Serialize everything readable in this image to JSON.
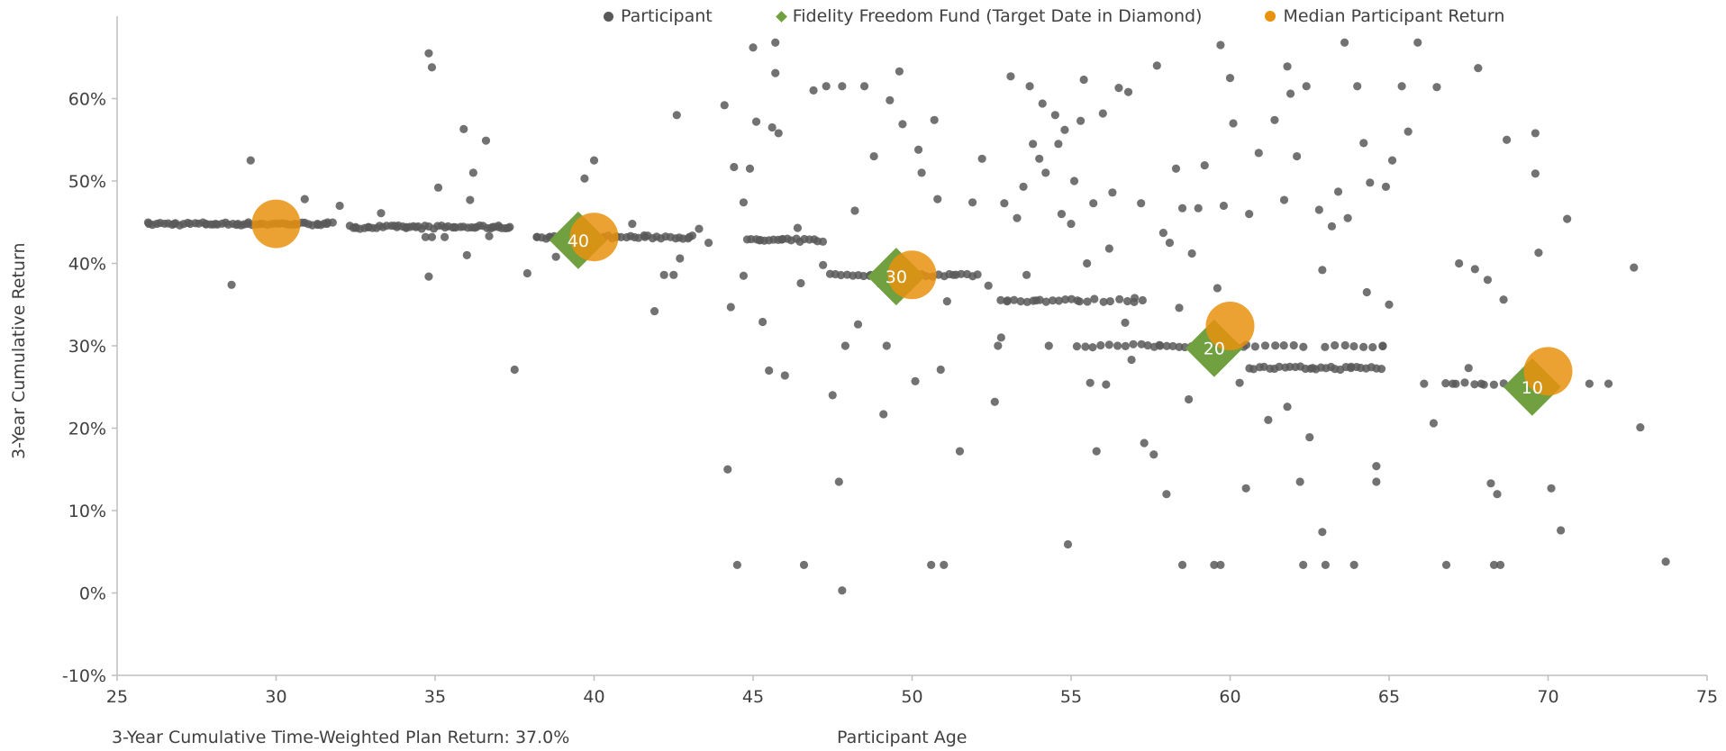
{
  "chart_data": {
    "type": "scatter",
    "xlabel": "Participant Age",
    "ylabel": "3-Year Cumulative Return",
    "xlim": [
      25,
      75
    ],
    "ylim": [
      -0.1,
      0.7
    ],
    "x_ticks": [
      "25",
      "30",
      "35",
      "40",
      "45",
      "50",
      "55",
      "60",
      "65",
      "70",
      "75"
    ],
    "y_ticks": [
      "-10%",
      "0%",
      "10%",
      "20%",
      "30%",
      "40%",
      "50%",
      "60%"
    ],
    "y_tick_values": [
      -0.1,
      0.0,
      0.1,
      0.2,
      0.3,
      0.4,
      0.5,
      0.6
    ],
    "x_tick_values": [
      25,
      30,
      35,
      40,
      45,
      50,
      55,
      60,
      65,
      70,
      75
    ],
    "gridlines": false,
    "legend_position": "top",
    "footnote": "3-Year Cumulative Time-Weighted  Plan Return:  37.0%",
    "colors": {
      "participant": "#595959",
      "fund": "#70a03f",
      "median": "#e8920f",
      "axis": "#bfbfbf"
    },
    "series": [
      {
        "name": "Participant",
        "marker": "dot",
        "points": [
          [
            26.0,
            0.448
          ],
          [
            26.8,
            0.448
          ],
          [
            27.8,
            0.448
          ],
          [
            28.1,
            0.448
          ],
          [
            28.6,
            0.374
          ],
          [
            28.8,
            0.448
          ],
          [
            29.1,
            0.448
          ],
          [
            29.2,
            0.525
          ],
          [
            29.5,
            0.448
          ],
          [
            30.3,
            0.448
          ],
          [
            30.6,
            0.448
          ],
          [
            30.9,
            0.478
          ],
          [
            31.3,
            0.448
          ],
          [
            31.6,
            0.448
          ],
          [
            32.0,
            0.47
          ],
          [
            32.5,
            0.444
          ],
          [
            32.9,
            0.444
          ],
          [
            33.3,
            0.461
          ],
          [
            33.8,
            0.444
          ],
          [
            34.1,
            0.444
          ],
          [
            34.4,
            0.444
          ],
          [
            34.8,
            0.655
          ],
          [
            34.9,
            0.638
          ],
          [
            34.8,
            0.384
          ],
          [
            34.7,
            0.432
          ],
          [
            34.9,
            0.432
          ],
          [
            35.1,
            0.492
          ],
          [
            35.3,
            0.432
          ],
          [
            35.6,
            0.444
          ],
          [
            35.9,
            0.563
          ],
          [
            36.0,
            0.41
          ],
          [
            36.1,
            0.477
          ],
          [
            36.2,
            0.51
          ],
          [
            36.3,
            0.444
          ],
          [
            36.6,
            0.549
          ],
          [
            36.7,
            0.433
          ],
          [
            36.8,
            0.444
          ],
          [
            37.0,
            0.444
          ],
          [
            37.3,
            0.443
          ],
          [
            37.5,
            0.271
          ],
          [
            37.9,
            0.388
          ],
          [
            38.2,
            0.432
          ],
          [
            38.6,
            0.432
          ],
          [
            38.8,
            0.408
          ],
          [
            39.7,
            0.503
          ],
          [
            40.0,
            0.525
          ],
          [
            40.3,
            0.432
          ],
          [
            40.7,
            0.432
          ],
          [
            41.2,
            0.448
          ],
          [
            41.6,
            0.432
          ],
          [
            41.9,
            0.342
          ],
          [
            42.2,
            0.386
          ],
          [
            42.5,
            0.386
          ],
          [
            42.6,
            0.58
          ],
          [
            42.7,
            0.406
          ],
          [
            43.0,
            0.432
          ],
          [
            43.3,
            0.442
          ],
          [
            43.6,
            0.425
          ],
          [
            44.1,
            0.592
          ],
          [
            44.2,
            0.15
          ],
          [
            44.3,
            0.347
          ],
          [
            44.4,
            0.517
          ],
          [
            44.5,
            0.034
          ],
          [
            44.7,
            0.474
          ],
          [
            44.7,
            0.385
          ],
          [
            44.9,
            0.515
          ],
          [
            45.0,
            0.662
          ],
          [
            45.1,
            0.572
          ],
          [
            45.2,
            0.428
          ],
          [
            45.3,
            0.329
          ],
          [
            45.5,
            0.27
          ],
          [
            45.6,
            0.565
          ],
          [
            45.7,
            0.631
          ],
          [
            45.7,
            0.668
          ],
          [
            45.8,
            0.558
          ],
          [
            45.9,
            0.429
          ],
          [
            46.0,
            0.264
          ],
          [
            46.4,
            0.443
          ],
          [
            46.5,
            0.376
          ],
          [
            46.6,
            0.034
          ],
          [
            46.9,
            0.61
          ],
          [
            47.2,
            0.398
          ],
          [
            47.3,
            0.615
          ],
          [
            47.5,
            0.24
          ],
          [
            47.7,
            0.135
          ],
          [
            47.8,
            0.003
          ],
          [
            47.8,
            0.615
          ],
          [
            47.9,
            0.3
          ],
          [
            48.2,
            0.464
          ],
          [
            48.3,
            0.326
          ],
          [
            48.5,
            0.615
          ],
          [
            48.7,
            0.386
          ],
          [
            48.8,
            0.53
          ],
          [
            49.0,
            0.375
          ],
          [
            49.1,
            0.217
          ],
          [
            49.2,
            0.3
          ],
          [
            49.3,
            0.598
          ],
          [
            49.6,
            0.633
          ],
          [
            49.7,
            0.569
          ],
          [
            49.9,
            0.386
          ],
          [
            50.1,
            0.257
          ],
          [
            50.2,
            0.538
          ],
          [
            50.3,
            0.51
          ],
          [
            50.6,
            0.034
          ],
          [
            50.7,
            0.574
          ],
          [
            50.8,
            0.478
          ],
          [
            50.9,
            0.271
          ],
          [
            51.0,
            0.034
          ],
          [
            51.1,
            0.354
          ],
          [
            51.3,
            0.386
          ],
          [
            51.5,
            0.172
          ],
          [
            51.9,
            0.474
          ],
          [
            52.2,
            0.527
          ],
          [
            52.4,
            0.373
          ],
          [
            52.6,
            0.232
          ],
          [
            52.7,
            0.3
          ],
          [
            52.8,
            0.31
          ],
          [
            52.9,
            0.473
          ],
          [
            53.0,
            0.355
          ],
          [
            53.1,
            0.627
          ],
          [
            53.3,
            0.455
          ],
          [
            53.5,
            0.493
          ],
          [
            53.6,
            0.386
          ],
          [
            53.7,
            0.615
          ],
          [
            53.8,
            0.545
          ],
          [
            53.9,
            0.355
          ],
          [
            54.0,
            0.527
          ],
          [
            54.1,
            0.594
          ],
          [
            54.2,
            0.51
          ],
          [
            54.3,
            0.3
          ],
          [
            54.5,
            0.58
          ],
          [
            54.6,
            0.545
          ],
          [
            54.7,
            0.46
          ],
          [
            54.8,
            0.562
          ],
          [
            54.9,
            0.059
          ],
          [
            55.0,
            0.448
          ],
          [
            55.1,
            0.5
          ],
          [
            55.2,
            0.355
          ],
          [
            55.3,
            0.573
          ],
          [
            55.4,
            0.623
          ],
          [
            55.5,
            0.4
          ],
          [
            55.6,
            0.255
          ],
          [
            55.7,
            0.473
          ],
          [
            55.8,
            0.172
          ],
          [
            56.0,
            0.582
          ],
          [
            56.1,
            0.253
          ],
          [
            56.2,
            0.418
          ],
          [
            56.3,
            0.486
          ],
          [
            56.5,
            0.613
          ],
          [
            56.7,
            0.328
          ],
          [
            56.8,
            0.608
          ],
          [
            56.9,
            0.283
          ],
          [
            57.0,
            0.358
          ],
          [
            57.2,
            0.473
          ],
          [
            57.3,
            0.182
          ],
          [
            57.6,
            0.168
          ],
          [
            57.7,
            0.64
          ],
          [
            57.8,
            0.3
          ],
          [
            57.9,
            0.437
          ],
          [
            58.0,
            0.12
          ],
          [
            58.1,
            0.425
          ],
          [
            58.3,
            0.515
          ],
          [
            58.4,
            0.346
          ],
          [
            58.5,
            0.034
          ],
          [
            58.5,
            0.467
          ],
          [
            58.7,
            0.235
          ],
          [
            58.8,
            0.412
          ],
          [
            59.0,
            0.467
          ],
          [
            59.2,
            0.519
          ],
          [
            59.4,
            0.3
          ],
          [
            59.5,
            0.034
          ],
          [
            59.6,
            0.37
          ],
          [
            59.7,
            0.034
          ],
          [
            59.7,
            0.665
          ],
          [
            59.8,
            0.47
          ],
          [
            60.0,
            0.625
          ],
          [
            60.1,
            0.57
          ],
          [
            60.3,
            0.255
          ],
          [
            60.5,
            0.127
          ],
          [
            60.6,
            0.46
          ],
          [
            60.9,
            0.534
          ],
          [
            61.2,
            0.21
          ],
          [
            61.4,
            0.574
          ],
          [
            61.7,
            0.477
          ],
          [
            61.8,
            0.639
          ],
          [
            61.8,
            0.226
          ],
          [
            61.9,
            0.606
          ],
          [
            62.1,
            0.53
          ],
          [
            62.2,
            0.135
          ],
          [
            62.3,
            0.034
          ],
          [
            62.4,
            0.615
          ],
          [
            62.5,
            0.189
          ],
          [
            62.6,
            0.273
          ],
          [
            62.8,
            0.465
          ],
          [
            62.9,
            0.392
          ],
          [
            62.9,
            0.074
          ],
          [
            63.0,
            0.034
          ],
          [
            63.2,
            0.445
          ],
          [
            63.4,
            0.487
          ],
          [
            63.6,
            0.668
          ],
          [
            63.7,
            0.455
          ],
          [
            63.8,
            0.273
          ],
          [
            63.9,
            0.034
          ],
          [
            64.0,
            0.615
          ],
          [
            64.2,
            0.546
          ],
          [
            64.3,
            0.365
          ],
          [
            64.4,
            0.498
          ],
          [
            64.6,
            0.154
          ],
          [
            64.6,
            0.135
          ],
          [
            64.8,
            0.3
          ],
          [
            64.9,
            0.493
          ],
          [
            65.0,
            0.35
          ],
          [
            65.1,
            0.525
          ],
          [
            65.4,
            0.615
          ],
          [
            65.6,
            0.56
          ],
          [
            65.9,
            0.668
          ],
          [
            66.1,
            0.254
          ],
          [
            66.4,
            0.206
          ],
          [
            66.5,
            0.614
          ],
          [
            66.8,
            0.034
          ],
          [
            67.0,
            0.254
          ],
          [
            67.2,
            0.4
          ],
          [
            67.5,
            0.273
          ],
          [
            67.7,
            0.393
          ],
          [
            67.8,
            0.637
          ],
          [
            67.9,
            0.254
          ],
          [
            68.1,
            0.38
          ],
          [
            68.2,
            0.133
          ],
          [
            68.3,
            0.034
          ],
          [
            68.4,
            0.12
          ],
          [
            68.5,
            0.034
          ],
          [
            68.6,
            0.356
          ],
          [
            68.7,
            0.55
          ],
          [
            69.6,
            0.558
          ],
          [
            69.6,
            0.509
          ],
          [
            69.7,
            0.413
          ],
          [
            70.1,
            0.127
          ],
          [
            70.4,
            0.076
          ],
          [
            70.6,
            0.454
          ],
          [
            71.3,
            0.254
          ],
          [
            71.9,
            0.254
          ],
          [
            72.7,
            0.395
          ],
          [
            72.9,
            0.201
          ],
          [
            73.7,
            0.038
          ]
        ]
      },
      {
        "name": "Fidelity Freedom Fund (Target Date in Diamond)",
        "marker": "diamond",
        "points": [
          {
            "x": 39.5,
            "y": 0.428,
            "label": "40"
          },
          {
            "x": 49.5,
            "y": 0.384,
            "label": "30"
          },
          {
            "x": 59.5,
            "y": 0.297,
            "label": "20"
          },
          {
            "x": 69.5,
            "y": 0.25,
            "label": "10"
          }
        ]
      },
      {
        "name": "Median Participant Return",
        "marker": "circle",
        "points": [
          [
            30,
            0.448
          ],
          [
            40,
            0.432
          ],
          [
            50,
            0.386
          ],
          [
            60,
            0.324
          ],
          [
            70,
            0.269
          ]
        ]
      }
    ],
    "clusters": [
      [
        26.0,
        31.8,
        0.448,
        0.12
      ],
      [
        32.3,
        37.4,
        0.444,
        0.12
      ],
      [
        38.2,
        43.2,
        0.432,
        0.14
      ],
      [
        44.8,
        47.3,
        0.428,
        0.14
      ],
      [
        47.4,
        52.2,
        0.386,
        0.18
      ],
      [
        52.8,
        55.0,
        0.355,
        0.2
      ],
      [
        55.0,
        57.3,
        0.355,
        0.25
      ],
      [
        55.2,
        57.4,
        0.3,
        0.25
      ],
      [
        57.4,
        60.6,
        0.3,
        0.2
      ],
      [
        60.6,
        64.8,
        0.273,
        0.16
      ],
      [
        60.5,
        62.5,
        0.3,
        0.3
      ],
      [
        63.0,
        65.0,
        0.3,
        0.3
      ],
      [
        66.8,
        68.6,
        0.254,
        0.3
      ]
    ]
  }
}
